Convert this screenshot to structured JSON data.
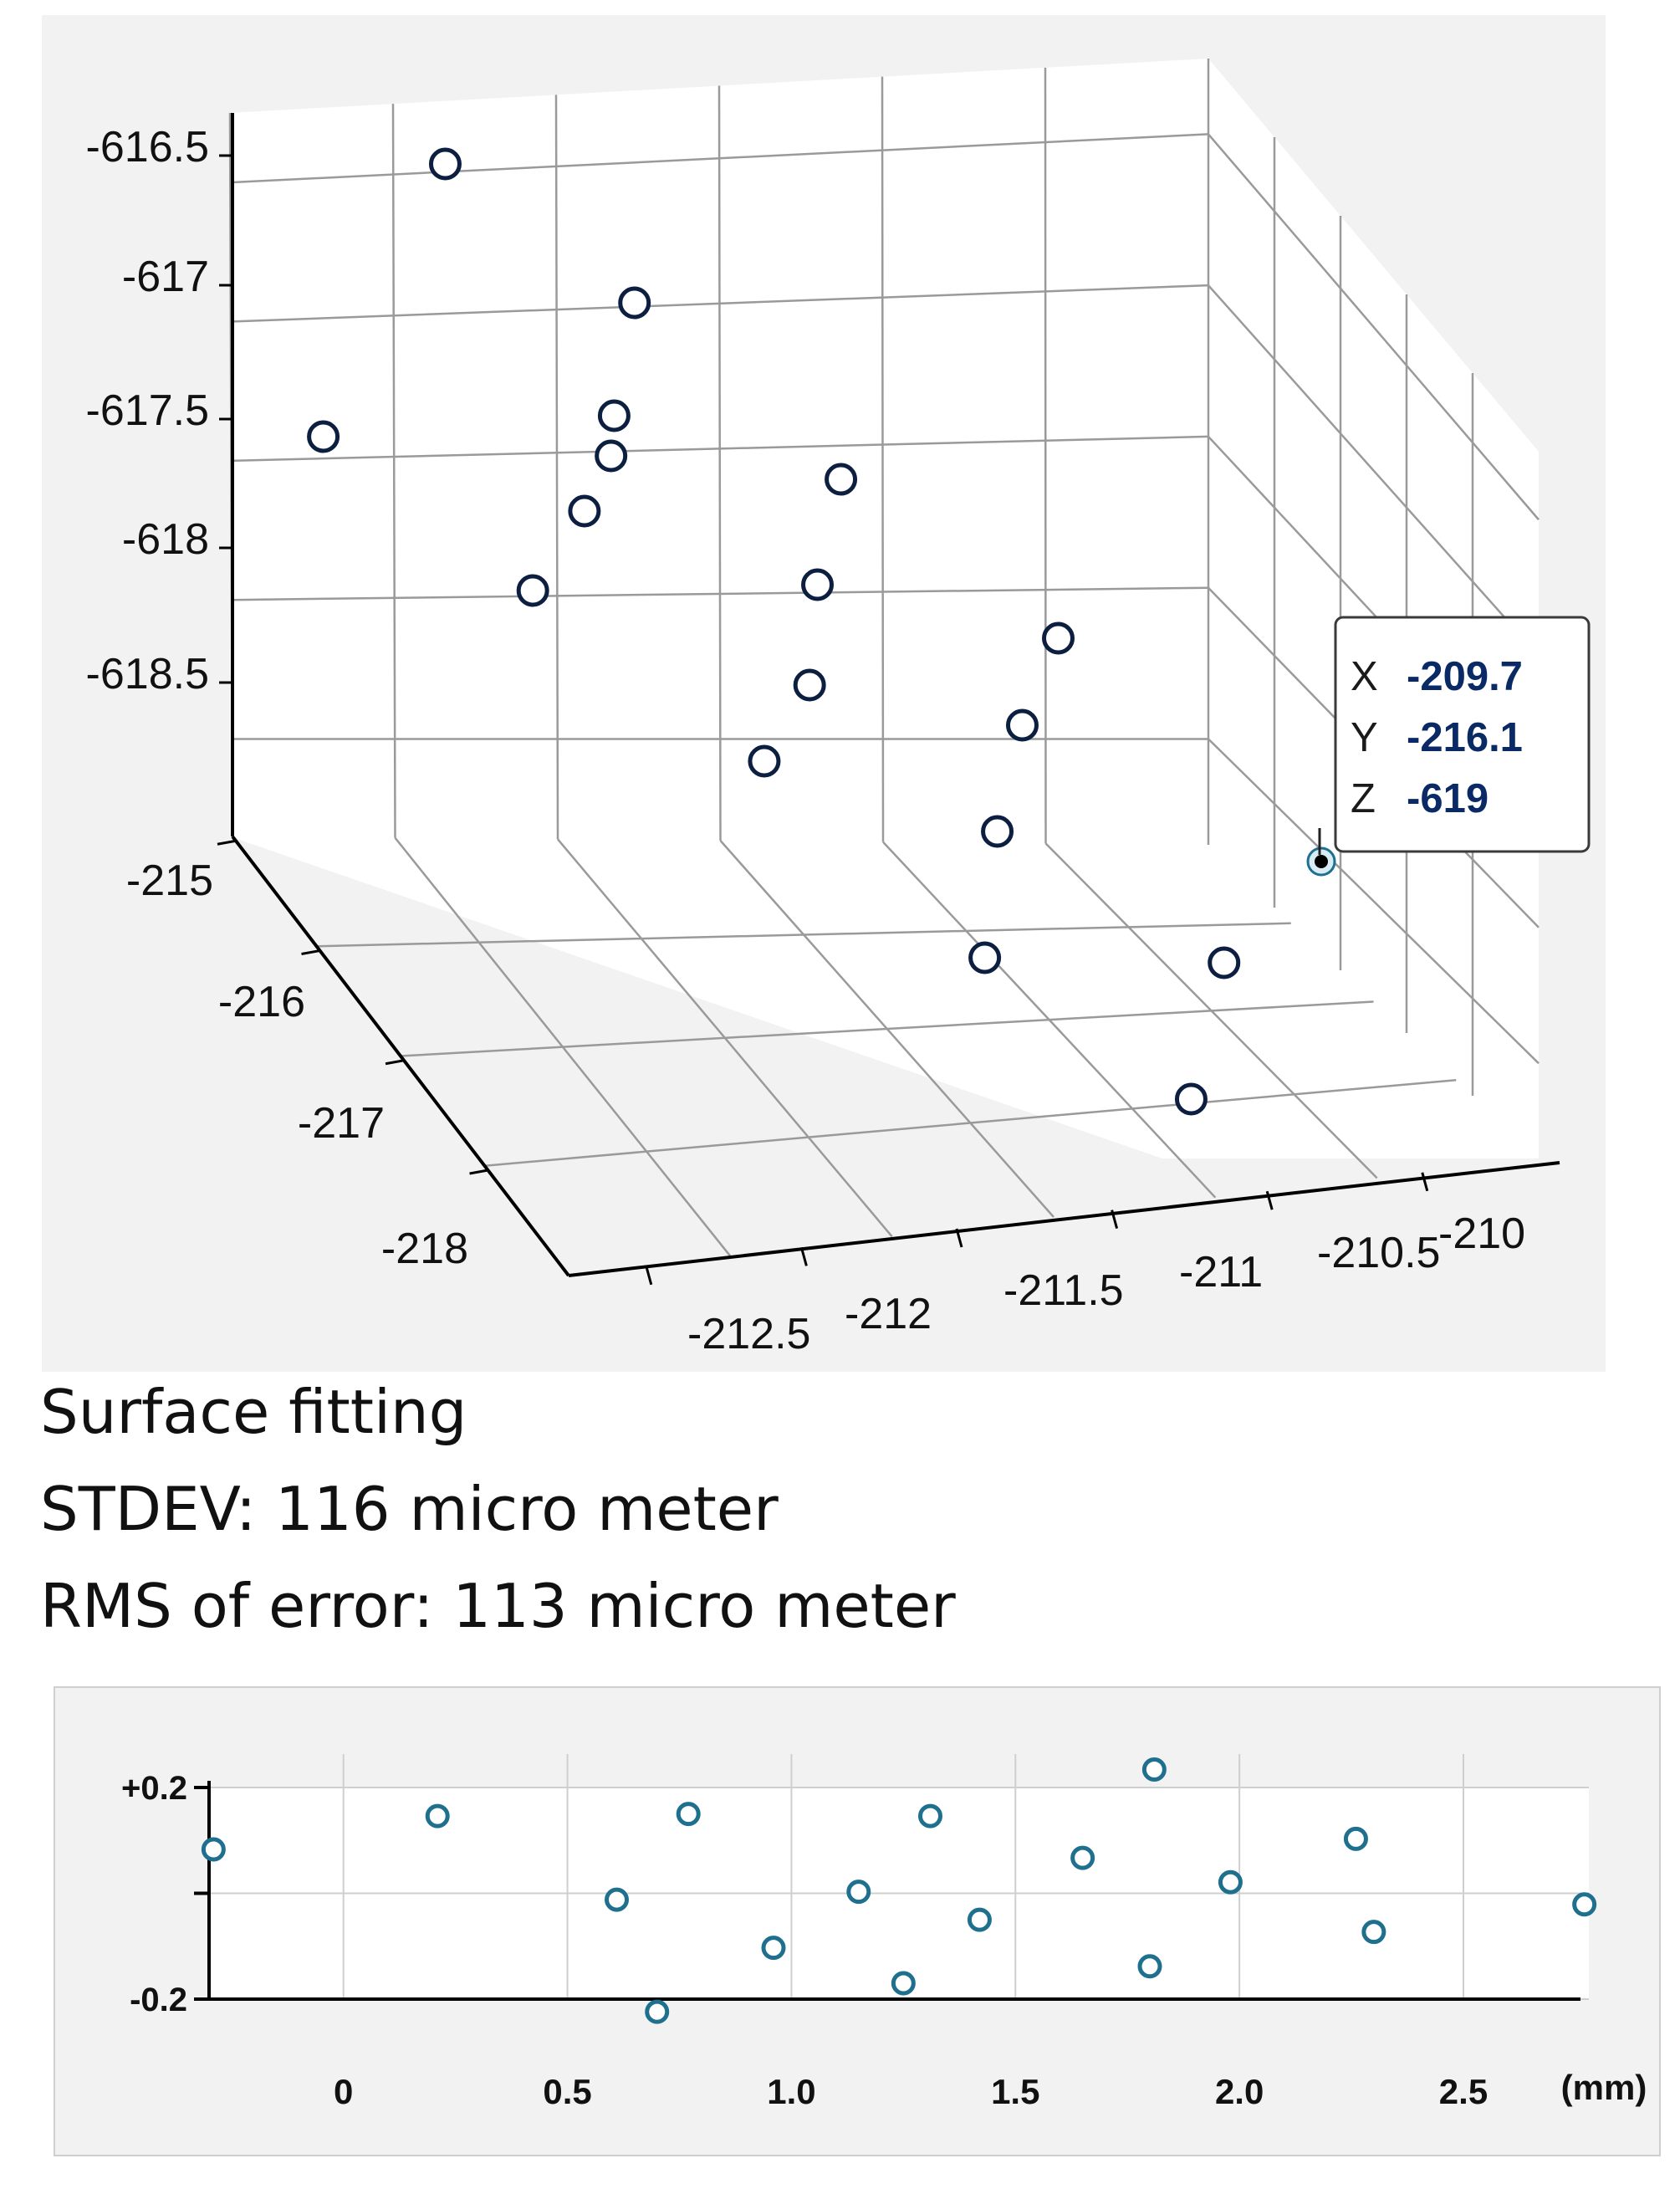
{
  "chart_data": [
    {
      "type": "scatter",
      "dimensions": 3,
      "axes": {
        "x": {
          "ticks": [
            -212.5,
            -212,
            -211.5,
            -211,
            -210.5,
            -210
          ],
          "tick_labels": [
            "-212.5",
            "-212",
            "-211.5",
            "-211",
            "-210.5",
            "-210"
          ]
        },
        "y": {
          "ticks": [
            -215,
            -216,
            -217,
            -218
          ],
          "tick_labels": [
            "-215",
            "-216",
            "-217",
            "-218"
          ]
        },
        "z": {
          "ticks": [
            -616.5,
            -617,
            -617.5,
            -618,
            -618.5
          ],
          "tick_labels": [
            "-616.5",
            "-617",
            "-617.5",
            "-618",
            "-618.5"
          ]
        }
      },
      "grid": true,
      "points_projected": [
        [
          0.258,
          0.056
        ],
        [
          0.379,
          0.222
        ],
        [
          0.18,
          0.382
        ],
        [
          0.366,
          0.357
        ],
        [
          0.364,
          0.405
        ],
        [
          0.347,
          0.471
        ],
        [
          0.511,
          0.433
        ],
        [
          0.314,
          0.566
        ],
        [
          0.496,
          0.559
        ],
        [
          0.65,
          0.623
        ],
        [
          0.491,
          0.679
        ],
        [
          0.627,
          0.727
        ],
        [
          0.462,
          0.77
        ],
        [
          0.611,
          0.854
        ],
        [
          0.603,
          1.005
        ],
        [
          0.756,
          1.011
        ],
        [
          0.735,
          1.174
        ]
      ],
      "highlighted_point": {
        "x": -209.7,
        "y": -216.1,
        "z": -619
      },
      "datatip": {
        "x_label": "X",
        "x_value": "-209.7",
        "y_label": "Y",
        "y_value": "-216.1",
        "z_label": "Z",
        "z_value": "-619"
      }
    },
    {
      "type": "scatter",
      "title": "",
      "xlabel": "(mm)",
      "ylabel": "",
      "xlim": [
        -0.3,
        2.78
      ],
      "ylim": [
        -0.2,
        0.2
      ],
      "x_ticks": [
        0,
        0.5,
        1.0,
        1.5,
        2.0,
        2.5
      ],
      "x_tick_labels": [
        "0",
        "0.5",
        "1.0",
        "1.5",
        "2.0",
        "2.5"
      ],
      "y_ticks": [
        0.2,
        0,
        -0.2
      ],
      "y_tick_labels": [
        "+0.2",
        "",
        "-0.2"
      ],
      "grid": true,
      "points": [
        {
          "x": -0.29,
          "y": 0.083
        },
        {
          "x": 0.21,
          "y": 0.146
        },
        {
          "x": 0.77,
          "y": 0.15
        },
        {
          "x": 1.31,
          "y": 0.146
        },
        {
          "x": 1.81,
          "y": 0.234
        },
        {
          "x": 2.26,
          "y": 0.103
        },
        {
          "x": 0.61,
          "y": -0.012
        },
        {
          "x": 1.15,
          "y": 0.003
        },
        {
          "x": 1.65,
          "y": 0.067
        },
        {
          "x": 1.98,
          "y": 0.021
        },
        {
          "x": 2.77,
          "y": -0.021
        },
        {
          "x": 0.96,
          "y": -0.103
        },
        {
          "x": 1.42,
          "y": -0.05
        },
        {
          "x": 2.3,
          "y": -0.073
        },
        {
          "x": 1.25,
          "y": -0.17
        },
        {
          "x": 1.8,
          "y": -0.138
        },
        {
          "x": 0.7,
          "y": -0.224
        }
      ]
    }
  ],
  "caption": {
    "line1": "Surface fitting",
    "line2": "STDEV: 116 micro meter",
    "line3": "RMS of error: 113 micro meter"
  },
  "colors": {
    "marker3d": "#0d1f40",
    "marker2d": "#1f6f8e",
    "grid": "#9a9a9a",
    "panel_bg": "#f2f2f2",
    "datatip_value": "#0a2a66"
  }
}
